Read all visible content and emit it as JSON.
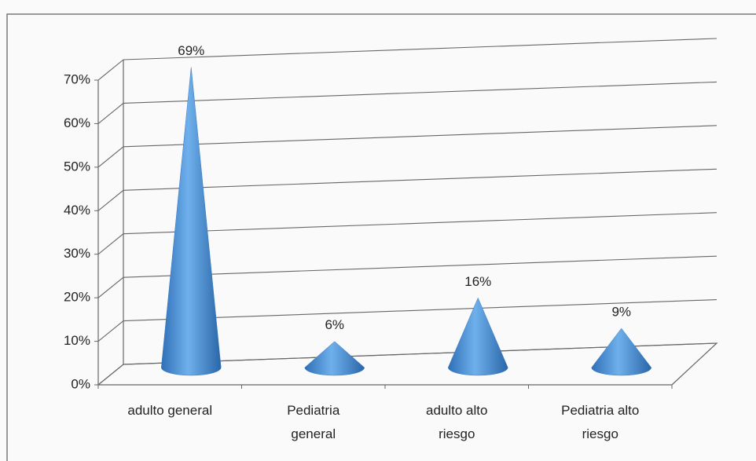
{
  "chart_data": {
    "type": "cone",
    "categories": [
      "adulto general",
      "Pediatria general",
      "adulto alto riesgo",
      "Pediatria alto riesgo"
    ],
    "values": [
      69,
      6,
      16,
      9
    ],
    "value_labels": [
      "69%",
      "6%",
      "16%",
      "9%"
    ],
    "color": "#4a8fd6",
    "ylim": [
      0,
      70
    ],
    "yticks": [
      {
        "value": 0,
        "label": "0%"
      },
      {
        "value": 10,
        "label": "10%"
      },
      {
        "value": 20,
        "label": "20%"
      },
      {
        "value": 30,
        "label": "30%"
      },
      {
        "value": 40,
        "label": "40%"
      },
      {
        "value": 50,
        "label": "50%"
      },
      {
        "value": 60,
        "label": "60%"
      },
      {
        "value": 70,
        "label": "70%"
      }
    ],
    "grid": true
  }
}
